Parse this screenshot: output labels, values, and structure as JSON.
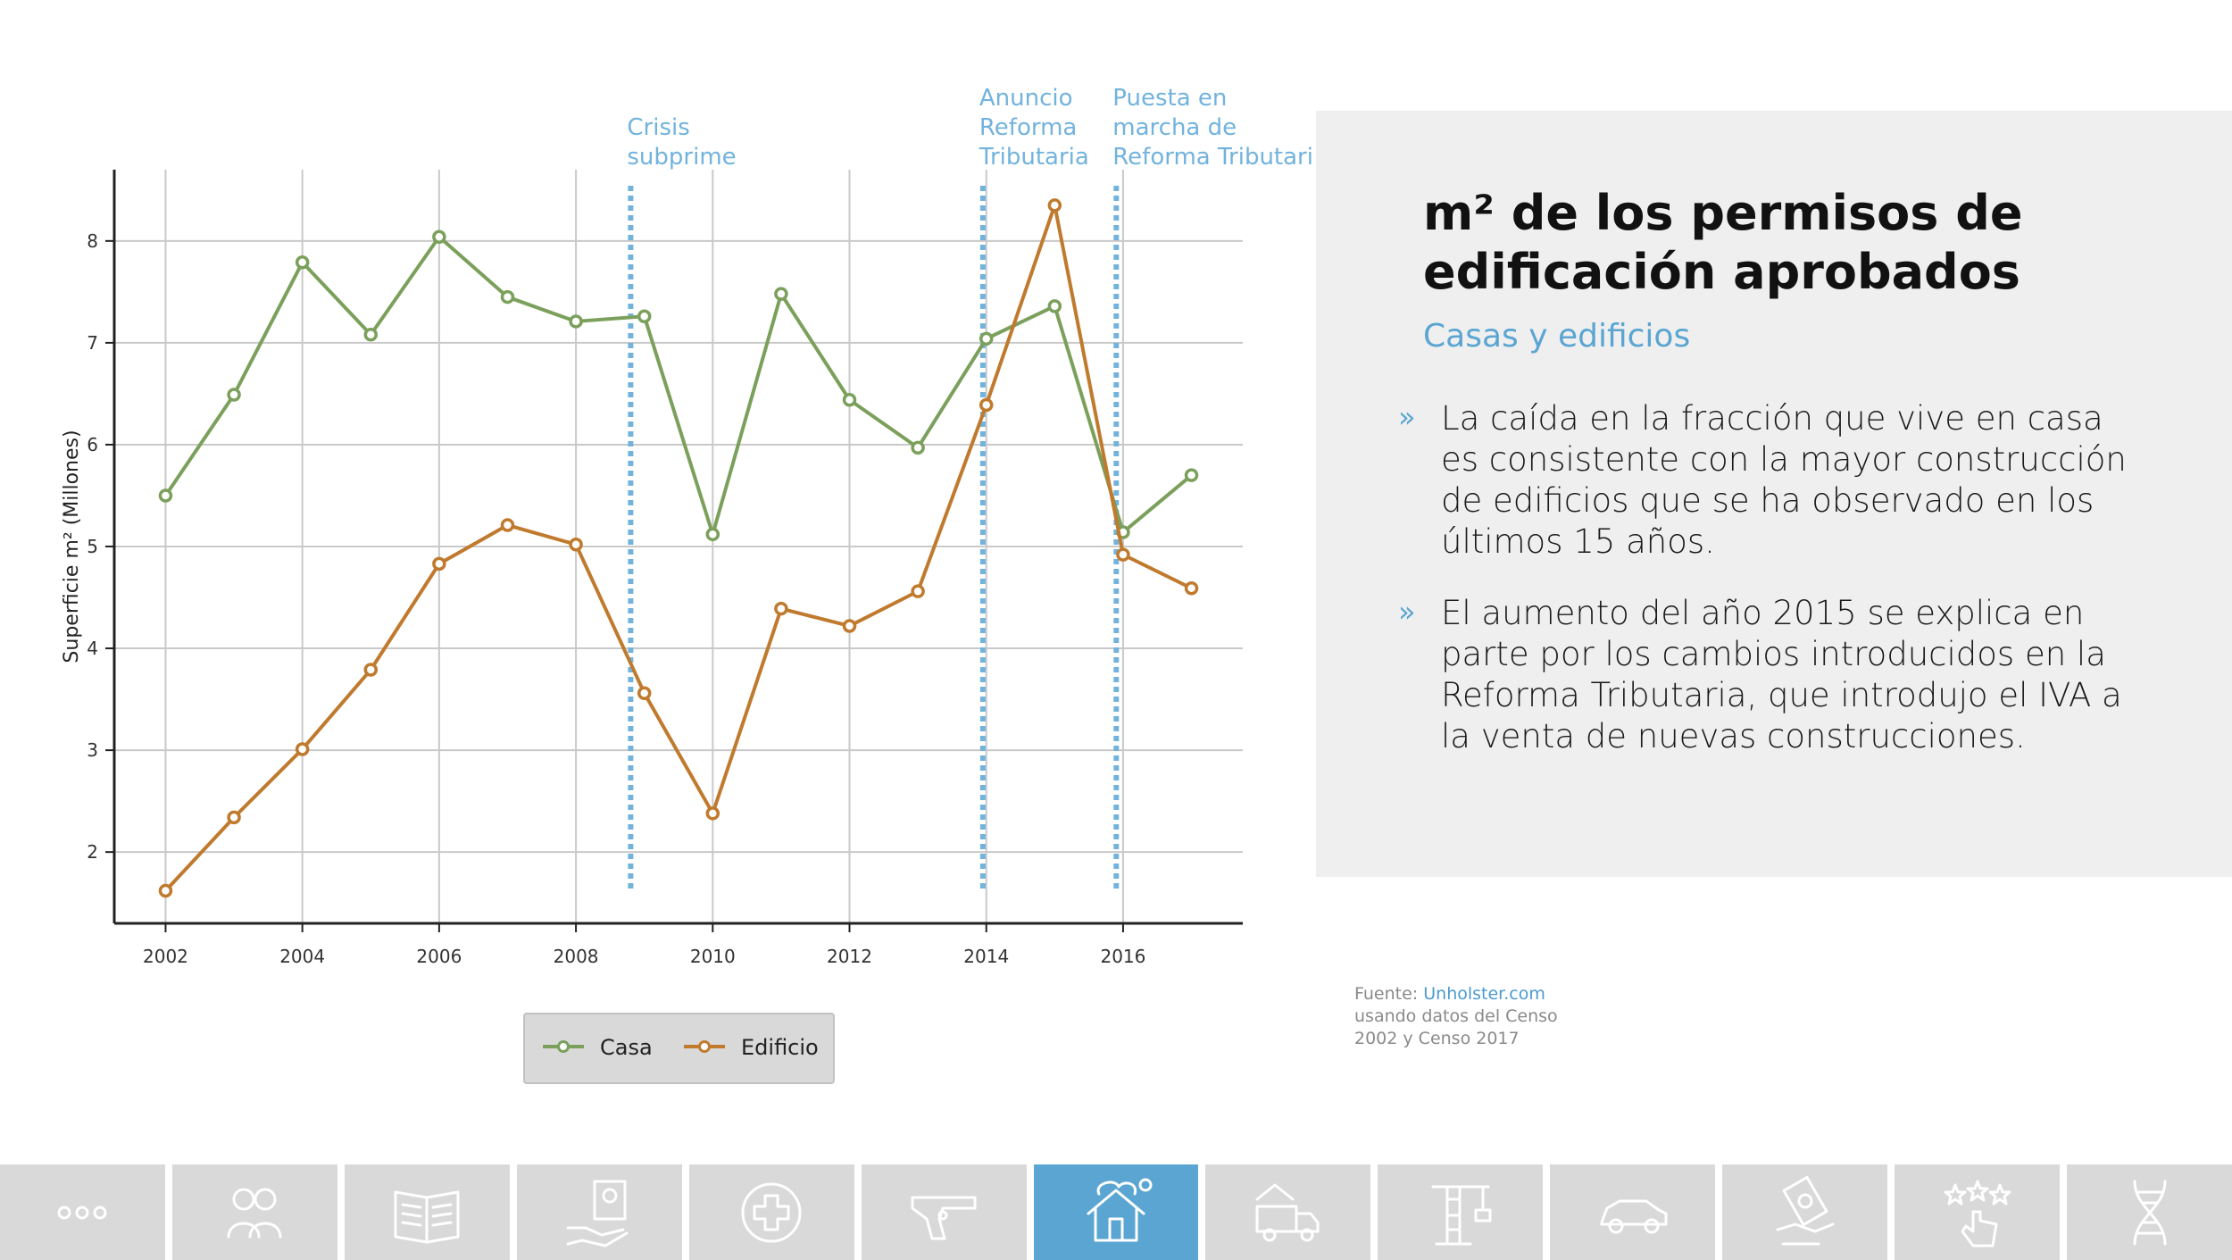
{
  "panel": {
    "title": "m² de los permisos de edificación aprobados",
    "subtitle": "Casas y edificios",
    "bullets": [
      {
        "mark": "»",
        "text": "La caída en la fracción que vive en casa es consistente con la mayor construcción de edificios que se ha observado en los últimos 15 años."
      },
      {
        "mark": "»",
        "text": "El aumento del año 2015 se explica en parte por los cambios introducidos en la Reforma Tributaria, que introdujo el IVA a la venta de nuevas construcciones."
      }
    ]
  },
  "source": {
    "prefix": "Fuente: ",
    "link": "Unholster.com",
    "line2": "usando datos del Censo",
    "line3": "2002 y Censo 2017"
  },
  "chart_data": {
    "type": "line",
    "title": "",
    "xlabel": "",
    "ylabel": "Superficie m² (Millones)",
    "x": [
      2002,
      2003,
      2004,
      2005,
      2006,
      2007,
      2008,
      2009,
      2010,
      2011,
      2012,
      2013,
      2014,
      2015,
      2016,
      2017
    ],
    "xticks": [
      2002,
      2004,
      2006,
      2008,
      2010,
      2012,
      2014,
      2016
    ],
    "yticks": [
      2,
      3,
      4,
      5,
      6,
      7,
      8
    ],
    "xlim": [
      2001.25,
      2017.75
    ],
    "ylim": [
      1.3,
      8.7
    ],
    "grid": true,
    "legend_position": "bottom",
    "series": [
      {
        "name": "Casa",
        "color": "#7ba05b",
        "values": [
          5.5,
          6.49,
          7.79,
          7.08,
          8.04,
          7.45,
          7.21,
          7.26,
          5.12,
          7.48,
          6.44,
          5.97,
          7.04,
          7.36,
          5.14,
          5.7
        ]
      },
      {
        "name": "Edificio",
        "color": "#c07a2e",
        "values": [
          1.62,
          2.34,
          3.01,
          3.79,
          4.83,
          5.21,
          5.02,
          3.56,
          2.38,
          4.39,
          4.22,
          4.56,
          6.39,
          8.35,
          4.92,
          4.59
        ]
      }
    ],
    "annotations": [
      {
        "x": 2008.8,
        "lines": [
          "Crisis",
          "subprime"
        ]
      },
      {
        "x": 2013.95,
        "lines": [
          "Anuncio",
          "Reforma",
          "Tributaria"
        ]
      },
      {
        "x": 2015.9,
        "lines": [
          "Puesta en",
          "marcha de",
          "Reforma Tributaria"
        ]
      }
    ],
    "annotation_color": "#72b3dd"
  },
  "nav": {
    "active_index": 6,
    "active_color": "#5aa5d2",
    "items": [
      {
        "icon": "more-dots-icon"
      },
      {
        "icon": "people-icon"
      },
      {
        "icon": "book-icon"
      },
      {
        "icon": "hand-certificate-icon"
      },
      {
        "icon": "health-cross-icon"
      },
      {
        "icon": "pistol-icon"
      },
      {
        "icon": "house-icon"
      },
      {
        "icon": "moving-truck-icon"
      },
      {
        "icon": "construction-crane-icon"
      },
      {
        "icon": "car-icon"
      },
      {
        "icon": "money-hand-icon"
      },
      {
        "icon": "rating-stars-hand-icon"
      },
      {
        "icon": "dna-icon"
      }
    ]
  }
}
